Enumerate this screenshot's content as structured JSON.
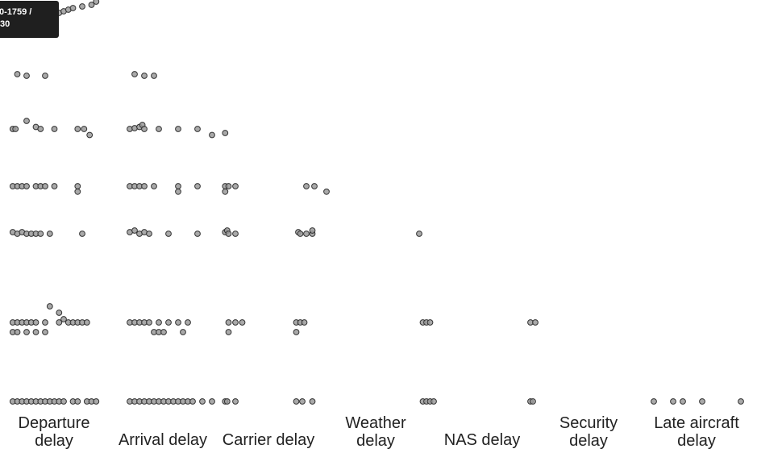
{
  "tooltip": {
    "text": "0-1759 /\n30"
  },
  "chart_data": {
    "type": "scatter",
    "variables": [
      "Departure\ndelay",
      "Arrival delay",
      "Carrier delay",
      "Weather\ndelay",
      "NAS delay",
      "Security\ndelay",
      "Late aircraft\ndelay"
    ],
    "colors": {
      "fill": "#9a9a9a",
      "stroke": "#333333"
    },
    "note_axes": "Lower-triangular scatter-plot matrix. Row r plots variable r+1 (y) against column variable c (x).",
    "cells": [
      {
        "row": 0,
        "col": 0,
        "points": [
          [
            0.05,
            0.2
          ],
          [
            0.1,
            0.3
          ],
          [
            0.15,
            0.25
          ],
          [
            0.2,
            0.4
          ],
          [
            0.25,
            0.3
          ],
          [
            0.3,
            0.35
          ],
          [
            0.35,
            0.5
          ],
          [
            0.4,
            0.45
          ],
          [
            0.45,
            0.6
          ],
          [
            0.5,
            0.55
          ],
          [
            0.55,
            0.6
          ],
          [
            0.6,
            0.65
          ],
          [
            0.65,
            0.7
          ],
          [
            0.7,
            0.75
          ],
          [
            0.8,
            0.8
          ],
          [
            0.9,
            0.85
          ],
          [
            0.95,
            0.95
          ],
          [
            0.02,
            0.1
          ],
          [
            0.04,
            0.12
          ],
          [
            0.06,
            0.15
          ],
          [
            0.08,
            0.2
          ],
          [
            0.12,
            0.25
          ],
          [
            0.18,
            0.3
          ],
          [
            0.22,
            0.35
          ]
        ]
      },
      {
        "row": 1,
        "col": 0,
        "points": [
          [
            0.1,
            0.3
          ],
          [
            0.2,
            0.2
          ],
          [
            0.4,
            0.2
          ]
        ]
      },
      {
        "row": 1,
        "col": 1,
        "points": [
          [
            0.1,
            0.3
          ],
          [
            0.2,
            0.2
          ],
          [
            0.3,
            0.2
          ]
        ]
      },
      {
        "row": 2,
        "col": 0,
        "points": [
          [
            0.05,
            0.2
          ],
          [
            0.08,
            0.2
          ],
          [
            0.2,
            0.4
          ],
          [
            0.3,
            0.25
          ],
          [
            0.35,
            0.2
          ],
          [
            0.5,
            0.2
          ],
          [
            0.75,
            0.2
          ],
          [
            0.82,
            0.2
          ],
          [
            0.88,
            0.05
          ]
        ]
      },
      {
        "row": 2,
        "col": 1,
        "points": [
          [
            0.05,
            0.2
          ],
          [
            0.1,
            0.22
          ],
          [
            0.15,
            0.25
          ],
          [
            0.18,
            0.3
          ],
          [
            0.2,
            0.2
          ],
          [
            0.35,
            0.2
          ],
          [
            0.55,
            0.2
          ],
          [
            0.75,
            0.2
          ],
          [
            0.9,
            0.05
          ]
        ]
      },
      {
        "row": 2,
        "col": 2,
        "points": [
          [
            0.05,
            0.1
          ]
        ]
      },
      {
        "row": 3,
        "col": 0,
        "points": [
          [
            0.05,
            0.2
          ],
          [
            0.1,
            0.2
          ],
          [
            0.15,
            0.2
          ],
          [
            0.2,
            0.2
          ],
          [
            0.3,
            0.2
          ],
          [
            0.35,
            0.2
          ],
          [
            0.4,
            0.2
          ],
          [
            0.5,
            0.2
          ],
          [
            0.75,
            0.2
          ],
          [
            0.75,
            0.05
          ]
        ]
      },
      {
        "row": 3,
        "col": 1,
        "points": [
          [
            0.05,
            0.2
          ],
          [
            0.1,
            0.2
          ],
          [
            0.15,
            0.2
          ],
          [
            0.2,
            0.2
          ],
          [
            0.3,
            0.2
          ],
          [
            0.55,
            0.2
          ],
          [
            0.55,
            0.05
          ],
          [
            0.75,
            0.2
          ]
        ]
      },
      {
        "row": 3,
        "col": 2,
        "points": [
          [
            0.05,
            0.2
          ],
          [
            0.1,
            0.2
          ],
          [
            0.2,
            0.2
          ],
          [
            0.05,
            0.05
          ]
        ]
      },
      {
        "row": 3,
        "col": 3,
        "points": [
          [
            0.3,
            0.2
          ],
          [
            0.5,
            0.2
          ],
          [
            0.8,
            0.05
          ]
        ]
      },
      {
        "row": 4,
        "col": 0,
        "points": [
          [
            0.05,
            0.25
          ],
          [
            0.1,
            0.2
          ],
          [
            0.15,
            0.25
          ],
          [
            0.2,
            0.2
          ],
          [
            0.25,
            0.2
          ],
          [
            0.3,
            0.2
          ],
          [
            0.35,
            0.2
          ],
          [
            0.45,
            0.2
          ],
          [
            0.8,
            0.2
          ]
        ]
      },
      {
        "row": 4,
        "col": 1,
        "points": [
          [
            0.05,
            0.25
          ],
          [
            0.1,
            0.3
          ],
          [
            0.15,
            0.2
          ],
          [
            0.2,
            0.25
          ],
          [
            0.25,
            0.2
          ],
          [
            0.45,
            0.2
          ],
          [
            0.75,
            0.2
          ]
        ]
      },
      {
        "row": 4,
        "col": 2,
        "points": [
          [
            0.05,
            0.25
          ],
          [
            0.08,
            0.3
          ],
          [
            0.1,
            0.2
          ],
          [
            0.2,
            0.2
          ]
        ]
      },
      {
        "row": 4,
        "col": 3,
        "points": [
          [
            0.1,
            0.25
          ],
          [
            0.15,
            0.2
          ],
          [
            0.3,
            0.2
          ],
          [
            0.45,
            0.2
          ],
          [
            0.45,
            0.3
          ]
        ]
      },
      {
        "row": 4,
        "col": 4,
        "points": [
          [
            0.0,
            0.2
          ]
        ]
      },
      {
        "row": 5,
        "col": 0,
        "points": [
          [
            0.05,
            0.25
          ],
          [
            0.1,
            0.25
          ],
          [
            0.15,
            0.25
          ],
          [
            0.2,
            0.25
          ],
          [
            0.25,
            0.25
          ],
          [
            0.3,
            0.25
          ],
          [
            0.4,
            0.25
          ],
          [
            0.45,
            0.5
          ],
          [
            0.55,
            0.25
          ],
          [
            0.65,
            0.25
          ],
          [
            0.7,
            0.25
          ],
          [
            0.75,
            0.25
          ],
          [
            0.8,
            0.25
          ],
          [
            0.85,
            0.25
          ],
          [
            0.55,
            0.4
          ],
          [
            0.6,
            0.3
          ],
          [
            0.05,
            0.1
          ],
          [
            0.1,
            0.1
          ],
          [
            0.2,
            0.1
          ],
          [
            0.3,
            0.1
          ],
          [
            0.4,
            0.1
          ]
        ]
      },
      {
        "row": 5,
        "col": 1,
        "points": [
          [
            0.05,
            0.25
          ],
          [
            0.1,
            0.25
          ],
          [
            0.15,
            0.25
          ],
          [
            0.2,
            0.25
          ],
          [
            0.25,
            0.25
          ],
          [
            0.35,
            0.25
          ],
          [
            0.45,
            0.25
          ],
          [
            0.55,
            0.25
          ],
          [
            0.65,
            0.25
          ],
          [
            0.3,
            0.1
          ],
          [
            0.35,
            0.1
          ],
          [
            0.4,
            0.1
          ],
          [
            0.6,
            0.1
          ]
        ]
      },
      {
        "row": 5,
        "col": 2,
        "points": [
          [
            0.1,
            0.25
          ],
          [
            0.2,
            0.25
          ],
          [
            0.3,
            0.25
          ],
          [
            0.1,
            0.1
          ]
        ]
      },
      {
        "row": 5,
        "col": 3,
        "points": [
          [
            0.05,
            0.25
          ],
          [
            0.15,
            0.25
          ],
          [
            0.25,
            0.25
          ],
          [
            0.05,
            0.1
          ]
        ]
      },
      {
        "row": 5,
        "col": 4,
        "points": [
          [
            0.1,
            0.25
          ],
          [
            0.2,
            0.25
          ],
          [
            0.3,
            0.25
          ]
        ]
      },
      {
        "row": 5,
        "col": 5,
        "points": [
          [
            0.1,
            0.25
          ],
          [
            0.3,
            0.25
          ]
        ]
      },
      {
        "row": 6,
        "col": 0,
        "points": [
          [
            0.05,
            0.2
          ],
          [
            0.1,
            0.2
          ],
          [
            0.15,
            0.2
          ],
          [
            0.2,
            0.2
          ],
          [
            0.25,
            0.2
          ],
          [
            0.3,
            0.2
          ],
          [
            0.35,
            0.2
          ],
          [
            0.4,
            0.2
          ],
          [
            0.45,
            0.2
          ],
          [
            0.5,
            0.2
          ],
          [
            0.55,
            0.2
          ],
          [
            0.6,
            0.2
          ],
          [
            0.7,
            0.2
          ],
          [
            0.75,
            0.2
          ],
          [
            0.85,
            0.2
          ],
          [
            0.9,
            0.2
          ],
          [
            0.95,
            0.2
          ]
        ]
      },
      {
        "row": 6,
        "col": 1,
        "points": [
          [
            0.05,
            0.2
          ],
          [
            0.1,
            0.2
          ],
          [
            0.15,
            0.2
          ],
          [
            0.2,
            0.2
          ],
          [
            0.25,
            0.2
          ],
          [
            0.3,
            0.2
          ],
          [
            0.35,
            0.2
          ],
          [
            0.4,
            0.2
          ],
          [
            0.45,
            0.2
          ],
          [
            0.5,
            0.2
          ],
          [
            0.55,
            0.2
          ],
          [
            0.6,
            0.2
          ],
          [
            0.65,
            0.2
          ],
          [
            0.7,
            0.2
          ],
          [
            0.8,
            0.2
          ],
          [
            0.9,
            0.2
          ]
        ]
      },
      {
        "row": 6,
        "col": 2,
        "points": [
          [
            0.05,
            0.2
          ],
          [
            0.08,
            0.2
          ],
          [
            0.2,
            0.2
          ]
        ]
      },
      {
        "row": 6,
        "col": 3,
        "points": [
          [
            0.05,
            0.2
          ],
          [
            0.2,
            0.2
          ],
          [
            0.45,
            0.2
          ]
        ]
      },
      {
        "row": 6,
        "col": 4,
        "points": [
          [
            0.1,
            0.2
          ],
          [
            0.2,
            0.2
          ],
          [
            0.3,
            0.2
          ],
          [
            0.4,
            0.2
          ]
        ]
      },
      {
        "row": 6,
        "col": 5,
        "points": [
          [
            0.1,
            0.2
          ],
          [
            0.2,
            0.2
          ]
        ]
      },
      {
        "row": 6,
        "col": 6,
        "points": [
          [
            0.05,
            0.2
          ],
          [
            0.25,
            0.2
          ],
          [
            0.35,
            0.2
          ],
          [
            0.55,
            0.2
          ],
          [
            0.95,
            0.2
          ]
        ]
      }
    ]
  }
}
